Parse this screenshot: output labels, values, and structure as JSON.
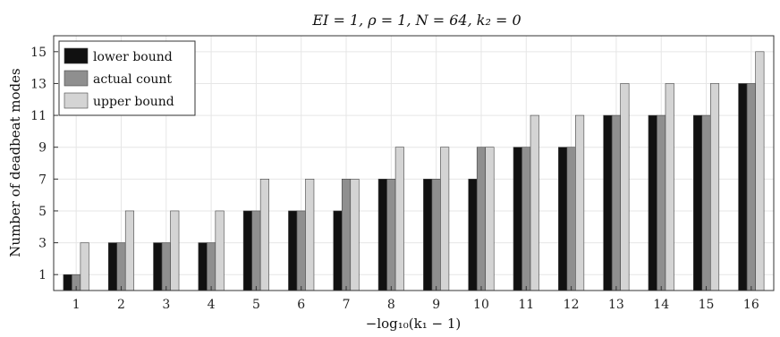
{
  "chart_data": {
    "type": "bar",
    "title": "EI = 1, ρ = 1, N = 64, k₂ = 0",
    "xlabel": "−log₁₀(k₁ − 1)",
    "ylabel": "Number of deadbeat modes",
    "categories": [
      "1",
      "2",
      "3",
      "4",
      "5",
      "6",
      "7",
      "8",
      "9",
      "10",
      "11",
      "12",
      "13",
      "14",
      "15",
      "16"
    ],
    "yticks": [
      "1",
      "3",
      "5",
      "7",
      "9",
      "11",
      "13",
      "15"
    ],
    "ylim": [
      0,
      16
    ],
    "grid": true,
    "legend_position": "top-left",
    "series": [
      {
        "name": "lower bound",
        "color": "#111111",
        "values": [
          1,
          3,
          3,
          3,
          5,
          5,
          5,
          7,
          7,
          7,
          9,
          9,
          11,
          11,
          11,
          13
        ]
      },
      {
        "name": "actual count",
        "color": "#8f8f8f",
        "values": [
          1,
          3,
          3,
          3,
          5,
          5,
          7,
          7,
          7,
          9,
          9,
          9,
          11,
          11,
          11,
          13
        ]
      },
      {
        "name": "upper bound",
        "color": "#d4d4d4",
        "values": [
          3,
          5,
          5,
          5,
          7,
          7,
          7,
          9,
          9,
          9,
          11,
          11,
          13,
          13,
          13,
          15
        ]
      }
    ]
  }
}
